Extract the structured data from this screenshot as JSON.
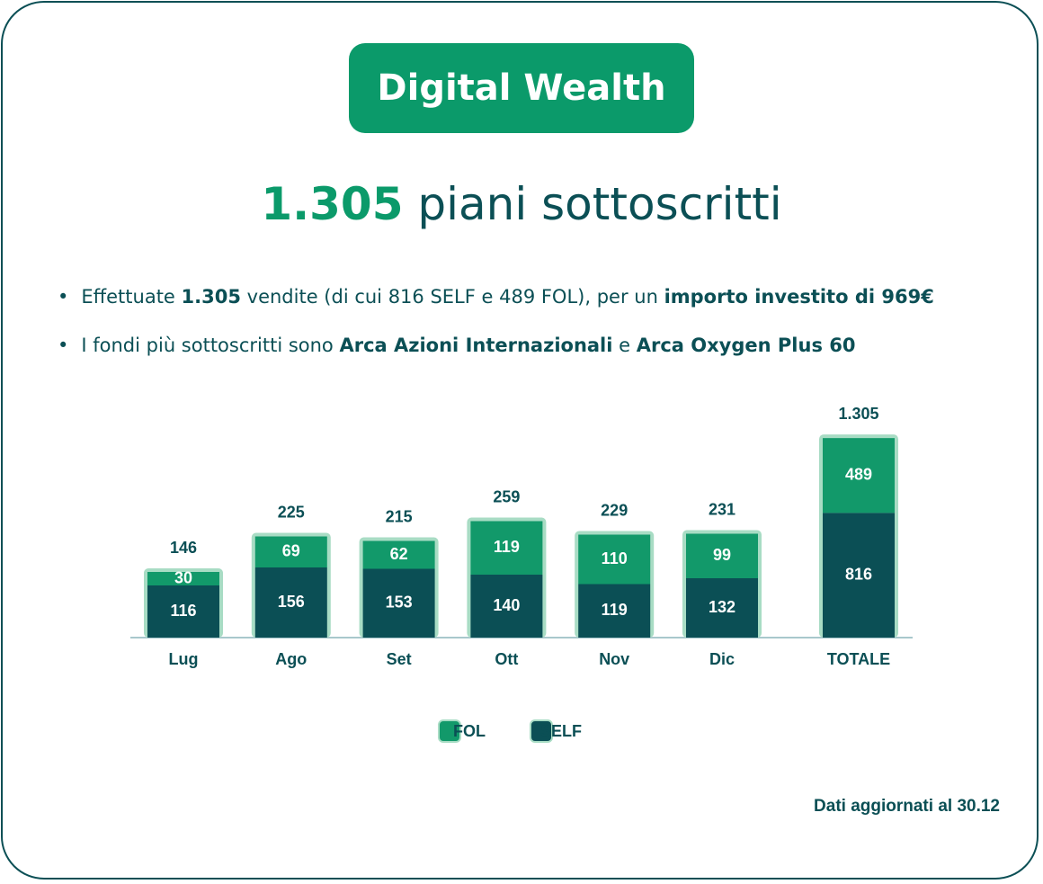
{
  "badge": "Digital Wealth",
  "headline": {
    "number": "1.305",
    "text": "piani sottoscritti"
  },
  "bullets": [
    [
      {
        "text": "Effettuate ",
        "bold": false
      },
      {
        "text": "1.305",
        "bold": true
      },
      {
        "text": " vendite (di cui 816 SELF e 489 FOL), per un ",
        "bold": false
      },
      {
        "text": "importo investito di 969€",
        "bold": true
      }
    ],
    [
      {
        "text": "I fondi più sottoscritti sono ",
        "bold": false
      },
      {
        "text": "Arca Azioni Internazionali",
        "bold": true
      },
      {
        "text": " e ",
        "bold": false
      },
      {
        "text": "Arca Oxygen Plus 60",
        "bold": true
      }
    ]
  ],
  "chart_data": {
    "type": "stacked-bar",
    "categories": [
      "Lug",
      "Ago",
      "Set",
      "Ott",
      "Nov",
      "Dic",
      "TOTALE"
    ],
    "series": [
      {
        "name": "FOL",
        "color": "#12996a",
        "values": [
          30,
          69,
          62,
          119,
          110,
          99,
          489
        ]
      },
      {
        "name": "SELF",
        "color": "#0b4f55",
        "values": [
          116,
          156,
          153,
          140,
          119,
          132,
          816
        ]
      }
    ],
    "totals": {
      "values": [
        146,
        225,
        215,
        259,
        229,
        231,
        1305
      ],
      "value_labels": [
        "146",
        "225",
        "215",
        "259",
        "229",
        "231",
        "1.305"
      ]
    }
  },
  "footnote": "Dati aggiornati al 30.12"
}
